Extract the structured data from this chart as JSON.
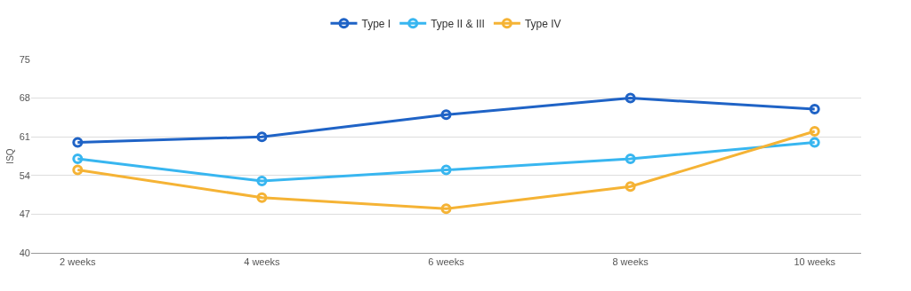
{
  "chart_data": {
    "type": "line",
    "ylabel": "ISQ",
    "categories": [
      "2 weeks",
      "4 weeks",
      "6 weeks",
      "8 weeks",
      "10 weeks"
    ],
    "series": [
      {
        "name": "Type I",
        "color": "#1f63c6",
        "values": [
          60,
          61,
          65,
          68,
          66
        ]
      },
      {
        "name": "Type II & III",
        "color": "#38b6f0",
        "values": [
          57,
          53,
          55,
          57,
          60
        ]
      },
      {
        "name": "Type IV",
        "color": "#f5b335",
        "values": [
          55,
          50,
          48,
          52,
          62
        ]
      }
    ],
    "ylim": [
      40,
      75
    ],
    "yticks": [
      40,
      47,
      54,
      61,
      68,
      75
    ],
    "grid": "y",
    "legend": "top",
    "marker": "circle",
    "line_style": "solid"
  }
}
